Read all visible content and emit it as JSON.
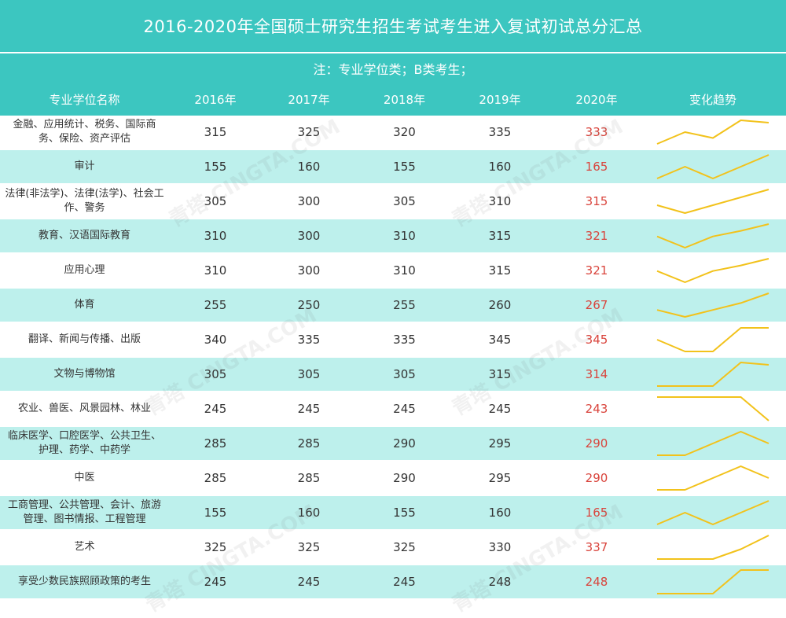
{
  "title": "2016-2020年全国硕士研究生招生考试考生进入复试初试总分汇总",
  "note": "注：专业学位类；B类考生；",
  "headers": [
    "专业学位名称",
    "2016年",
    "2017年",
    "2018年",
    "2019年",
    "2020年",
    "变化趋势"
  ],
  "trend_color": "#f2c21b",
  "highlight_color": "#d9443c",
  "watermark_text": "青塔 CINGTA.COM",
  "rows": [
    {
      "name": "金融、应用统计、税务、国际商务、保险、资产评估",
      "values": [
        315,
        325,
        320,
        335,
        333
      ]
    },
    {
      "name": "审计",
      "values": [
        155,
        160,
        155,
        160,
        165
      ]
    },
    {
      "name": "法律(非法学)、法律(法学)、社会工作、警务",
      "values": [
        305,
        300,
        305,
        310,
        315
      ]
    },
    {
      "name": "教育、汉语国际教育",
      "values": [
        310,
        300,
        310,
        315,
        321
      ]
    },
    {
      "name": "应用心理",
      "values": [
        310,
        300,
        310,
        315,
        321
      ]
    },
    {
      "name": "体育",
      "values": [
        255,
        250,
        255,
        260,
        267
      ]
    },
    {
      "name": "翻译、新闻与传播、出版",
      "values": [
        340,
        335,
        335,
        345,
        345
      ]
    },
    {
      "name": "文物与博物馆",
      "values": [
        305,
        305,
        305,
        315,
        314
      ]
    },
    {
      "name": "农业、兽医、风景园林、林业",
      "values": [
        245,
        245,
        245,
        245,
        243
      ]
    },
    {
      "name": "临床医学、口腔医学、公共卫生、护理、药学、中药学",
      "values": [
        285,
        285,
        290,
        295,
        290
      ]
    },
    {
      "name": "中医",
      "values": [
        285,
        285,
        290,
        295,
        290
      ]
    },
    {
      "name": "工商管理、公共管理、会计、旅游管理、图书情报、工程管理",
      "values": [
        155,
        160,
        155,
        160,
        165
      ]
    },
    {
      "name": "艺术",
      "values": [
        325,
        325,
        325,
        330,
        337
      ]
    },
    {
      "name": "享受少数民族照顾政策的考生",
      "values": [
        245,
        245,
        245,
        248,
        248
      ]
    }
  ]
}
